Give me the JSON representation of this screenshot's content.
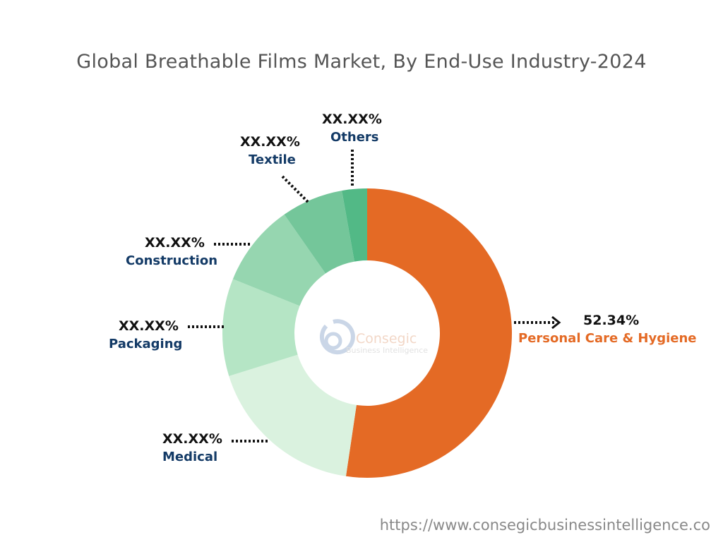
{
  "chart_data": {
    "type": "pie",
    "subtype": "donut",
    "title": "Global Breathable Films Market, By End-Use Industry-2024",
    "categories": [
      "Personal Care & Hygiene",
      "Medical",
      "Packaging",
      "Construction",
      "Textile",
      "Others"
    ],
    "values": [
      52.34,
      17.86,
      10.9,
      9.2,
      6.9,
      2.8
    ],
    "display_values": [
      "52.34%",
      "XX.XX%",
      "XX.XX%",
      "XX.XX%",
      "XX.XX%",
      "XX.XX%"
    ],
    "colors": [
      "#E46A25",
      "#DAF2DF",
      "#B5E5C5",
      "#96D6B0",
      "#74C69A",
      "#52B986"
    ],
    "label_colors": {
      "highlight": "#E46A25",
      "default": "#133A66"
    },
    "legend": "none"
  },
  "watermark": {
    "brand": "Consegic",
    "tagline": "Business Intelligence"
  },
  "footer": {
    "url": "https://www.consegicbusinessintelligence.co"
  }
}
